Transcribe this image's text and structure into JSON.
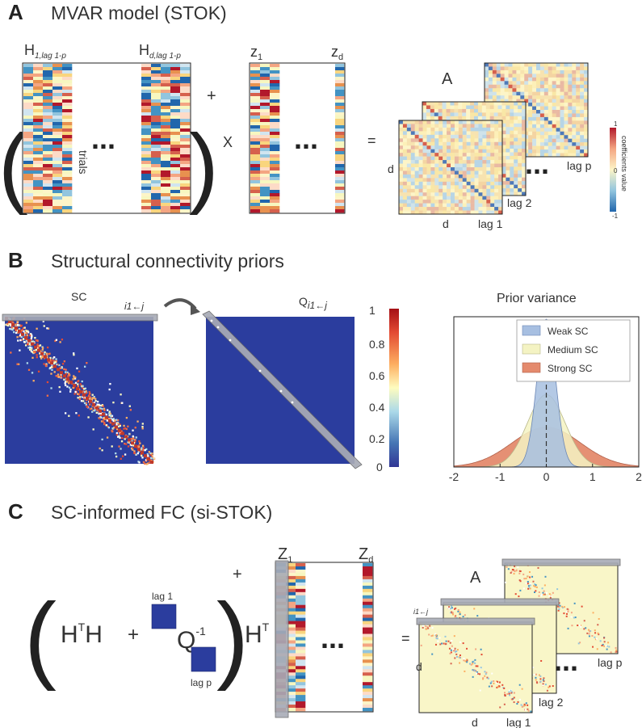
{
  "panels": {
    "a": {
      "letter": "A",
      "title": "MVAR model (STOK)",
      "h1_main": "H",
      "h1_sub": "1,lag 1-p",
      "hd_main": "H",
      "hd_sub": "d,lag 1-p",
      "trials": "trials",
      "ellipsis": "...",
      "plus": "+",
      "times": "X",
      "z1_main": "z",
      "z1_sub": "1",
      "zd_main": "z",
      "zd_sub": "d",
      "equals": "=",
      "a_label": "A",
      "d_left": "d",
      "d_bottom": "d",
      "lag1": "lag 1",
      "lag2": "lag 2",
      "lagp": "lag p",
      "colorbar_label": "coefficients value",
      "colorbar_ticks": [
        "1",
        "0",
        "-1"
      ]
    },
    "b": {
      "letter": "B",
      "title": "Structural connectivity priors",
      "sc_label": "SC",
      "arrow_label": "i1←j",
      "q_main": "Q",
      "q_sub": "i1←j",
      "colorbar_ticks": [
        "1",
        "0.8",
        "0.6",
        "0.4",
        "0.2",
        "0"
      ],
      "prior_title": "Prior variance",
      "legend": [
        "Weak SC",
        "Medium SC",
        "Strong SC"
      ],
      "x_ticks": [
        "-2",
        "-1",
        "0",
        "1",
        "2"
      ]
    },
    "c": {
      "letter": "C",
      "title": "SC-informed FC (si-STOK)",
      "hth": "H",
      "hth_sup": "T",
      "hth_tail": "H",
      "plus": "+",
      "q_inv": "Q",
      "q_inv_sup": "-1",
      "lag1": "lag 1",
      "lagp": "lag p",
      "ht": "H",
      "ht_sup": "T",
      "plus_sup": "+",
      "z1_main": "Z",
      "z1_sub": "1",
      "zd_main": "Z",
      "zd_sub": "d",
      "ellipsis": "...",
      "equals": "=",
      "a_label": "A",
      "ij_label": "i1←j",
      "d_left": "d",
      "d_bottom": "d",
      "lag1_out": "lag 1",
      "lag2_out": "lag 2",
      "lagp_out": "lag p"
    }
  },
  "colors": {
    "navy": "#2b3d9e",
    "pale_yellow": "#f9f6c8",
    "weak": "#a7bfe1",
    "medium": "#f4f3c3",
    "strong": "#e48a6d",
    "bar_gray": "#9fa3b0"
  },
  "chart_data": {
    "type": "area",
    "title": "Prior variance",
    "xlim": [
      -2,
      2
    ],
    "x_ticks": [
      -2,
      -1,
      0,
      1,
      2
    ],
    "series": [
      {
        "name": "Weak SC",
        "peak": 1.0,
        "sd": 0.2
      },
      {
        "name": "Medium SC",
        "peak": 0.49,
        "sd": 0.41
      },
      {
        "name": "Strong SC",
        "peak": 0.27,
        "sd": 0.74
      }
    ],
    "mean_line": 0
  }
}
